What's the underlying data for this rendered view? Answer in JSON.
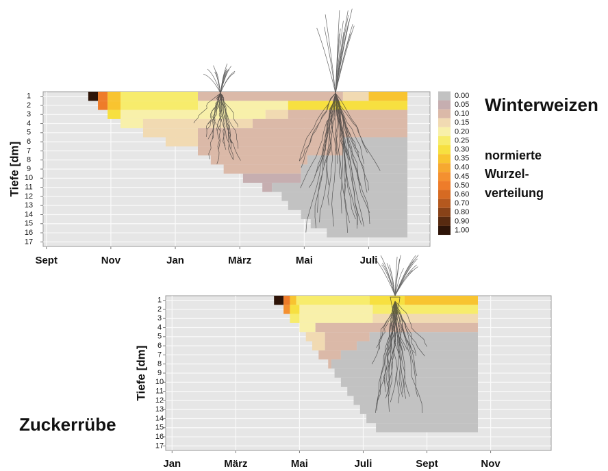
{
  "chart_data": [
    {
      "type": "heatmap",
      "title": "Winterweizen",
      "y_label": "Tiefe [dm]",
      "xlim": [
        -0.1,
        11.9
      ],
      "xticks": [
        {
          "value": 0,
          "label": "Sept"
        },
        {
          "value": 2,
          "label": "Nov"
        },
        {
          "value": 4,
          "label": "Jan"
        },
        {
          "value": 6,
          "label": "März"
        },
        {
          "value": 8,
          "label": "Mai"
        },
        {
          "value": 10,
          "label": "Juli"
        }
      ],
      "ylim": [
        0.5,
        17.5
      ],
      "y_inverted": true,
      "yticks": [
        1,
        2,
        3,
        4,
        5,
        6,
        7,
        8,
        9,
        10,
        11,
        12,
        13,
        14,
        15,
        16,
        17
      ],
      "grid": true,
      "colorbar": {
        "title": [
          "normierte",
          "Wurzel-",
          "verteilung"
        ],
        "ticks": [
          {
            "value": 0,
            "label": "0.00",
            "color": "#c2c2c2"
          },
          {
            "value": 0.05,
            "label": "0.05",
            "color": "#c6aeb0"
          },
          {
            "value": 0.1,
            "label": "0.10",
            "color": "#dbb9a8"
          },
          {
            "value": 0.15,
            "label": "0.15",
            "color": "#f1dab2"
          },
          {
            "value": 0.2,
            "label": "0.20",
            "color": "#f8f0aa"
          },
          {
            "value": 0.25,
            "label": "0.25",
            "color": "#f7ec6c"
          },
          {
            "value": 0.3,
            "label": "0.30",
            "color": "#f7e040"
          },
          {
            "value": 0.35,
            "label": "0.35",
            "color": "#f8c430"
          },
          {
            "value": 0.4,
            "label": "0.40",
            "color": "#f6a830"
          },
          {
            "value": 0.45,
            "label": "0.45",
            "color": "#f49030"
          },
          {
            "value": 0.5,
            "label": "0.50",
            "color": "#ee7c2a"
          },
          {
            "value": 0.6,
            "label": "0.60",
            "color": "#d66a22"
          },
          {
            "value": 0.7,
            "label": "0.70",
            "color": "#b4581e"
          },
          {
            "value": 0.8,
            "label": "0.80",
            "color": "#884218"
          },
          {
            "value": 0.9,
            "label": "0.90",
            "color": "#582a10"
          },
          {
            "value": 1,
            "label": "1.00",
            "color": "#2e1408"
          }
        ]
      },
      "rows": [
        [
          {
            "start": 1.3,
            "end": 1.6,
            "value": 1
          },
          {
            "start": 1.6,
            "end": 1.9,
            "value": 0.5
          },
          {
            "start": 1.9,
            "end": 2.3,
            "value": 0.35
          },
          {
            "start": 2.3,
            "end": 4.7,
            "value": 0.25
          },
          {
            "start": 4.7,
            "end": 9.2,
            "value": 0.1
          },
          {
            "start": 9.2,
            "end": 10,
            "value": 0.15
          },
          {
            "start": 10,
            "end": 11.2,
            "value": 0.35
          }
        ],
        [
          {
            "start": 1.6,
            "end": 1.9,
            "value": 0.5
          },
          {
            "start": 1.9,
            "end": 2.3,
            "value": 0.35
          },
          {
            "start": 2.3,
            "end": 4.7,
            "value": 0.25
          },
          {
            "start": 4.7,
            "end": 7.5,
            "value": 0.2
          },
          {
            "start": 7.5,
            "end": 11.2,
            "value": 0.3
          }
        ],
        [
          {
            "start": 1.9,
            "end": 2.3,
            "value": 0.3
          },
          {
            "start": 2.3,
            "end": 6.8,
            "value": 0.2
          },
          {
            "start": 6.8,
            "end": 7.5,
            "value": 0.15
          },
          {
            "start": 7.5,
            "end": 11.2,
            "value": 0.1
          }
        ],
        [
          {
            "start": 2.3,
            "end": 3,
            "value": 0.2
          },
          {
            "start": 3,
            "end": 6.4,
            "value": 0.15
          },
          {
            "start": 6.4,
            "end": 11.2,
            "value": 0.1
          }
        ],
        [
          {
            "start": 3,
            "end": 4.7,
            "value": 0.15
          },
          {
            "start": 4.7,
            "end": 11.2,
            "value": 0.1
          }
        ],
        [
          {
            "start": 3.7,
            "end": 4.7,
            "value": 0.15
          },
          {
            "start": 4.7,
            "end": 9.2,
            "value": 0.1
          },
          {
            "start": 9.2,
            "end": 11.2,
            "value": 0
          }
        ],
        [
          {
            "start": 4.7,
            "end": 9.2,
            "value": 0.1
          },
          {
            "start": 9.2,
            "end": 11.2,
            "value": 0
          }
        ],
        [
          {
            "start": 5.1,
            "end": 8.1,
            "value": 0.1
          },
          {
            "start": 8.1,
            "end": 11.2,
            "value": 0
          }
        ],
        [
          {
            "start": 5.5,
            "end": 7.9,
            "value": 0.1
          },
          {
            "start": 7.9,
            "end": 11.2,
            "value": 0
          }
        ],
        [
          {
            "start": 6.1,
            "end": 7.9,
            "value": 0.05
          },
          {
            "start": 7.9,
            "end": 11.2,
            "value": 0
          }
        ],
        [
          {
            "start": 6.7,
            "end": 7,
            "value": 0.05
          },
          {
            "start": 7,
            "end": 11.2,
            "value": 0
          }
        ],
        [
          {
            "start": 7.3,
            "end": 11.2,
            "value": 0
          }
        ],
        [
          {
            "start": 7.5,
            "end": 11.2,
            "value": 0
          }
        ],
        [
          {
            "start": 7.9,
            "end": 11.2,
            "value": 0
          }
        ],
        [
          {
            "start": 8.2,
            "end": 11.2,
            "value": 0
          }
        ],
        [
          {
            "start": 8.7,
            "end": 11.2,
            "value": 0
          }
        ],
        []
      ]
    },
    {
      "type": "heatmap",
      "title": "Zuckerrübe",
      "y_label": "Tiefe [dm]",
      "xlim": [
        -0.2,
        11.9
      ],
      "xticks": [
        {
          "value": 0,
          "label": "Jan"
        },
        {
          "value": 2,
          "label": "März"
        },
        {
          "value": 4,
          "label": "Mai"
        },
        {
          "value": 6,
          "label": "Juli"
        },
        {
          "value": 8,
          "label": "Sept"
        },
        {
          "value": 10,
          "label": "Nov"
        }
      ],
      "ylim": [
        0.5,
        17.5
      ],
      "y_inverted": true,
      "yticks": [
        1,
        2,
        3,
        4,
        5,
        6,
        7,
        8,
        9,
        10,
        11,
        12,
        13,
        14,
        15,
        16,
        17
      ],
      "grid": true,
      "rows": [
        [
          {
            "start": 3.2,
            "end": 3.5,
            "value": 1
          },
          {
            "start": 3.5,
            "end": 3.7,
            "value": 0.5
          },
          {
            "start": 3.7,
            "end": 3.9,
            "value": 0.35
          },
          {
            "start": 3.9,
            "end": 6.2,
            "value": 0.25
          },
          {
            "start": 6.2,
            "end": 7.3,
            "value": 0.3
          },
          {
            "start": 7.3,
            "end": 9.6,
            "value": 0.35
          }
        ],
        [
          {
            "start": 3.5,
            "end": 3.7,
            "value": 0.45
          },
          {
            "start": 3.7,
            "end": 4,
            "value": 0.3
          },
          {
            "start": 4,
            "end": 6.3,
            "value": 0.2
          },
          {
            "start": 6.3,
            "end": 9.6,
            "value": 0.25
          }
        ],
        [
          {
            "start": 3.7,
            "end": 4,
            "value": 0.25
          },
          {
            "start": 4,
            "end": 6.3,
            "value": 0.2
          },
          {
            "start": 6.3,
            "end": 9.6,
            "value": 0.15
          }
        ],
        [
          {
            "start": 4,
            "end": 4.5,
            "value": 0.2
          },
          {
            "start": 4.5,
            "end": 9.6,
            "value": 0.1
          }
        ],
        [
          {
            "start": 4.2,
            "end": 4.8,
            "value": 0.15
          },
          {
            "start": 4.8,
            "end": 6.2,
            "value": 0.1
          },
          {
            "start": 6.2,
            "end": 9.6,
            "value": 0
          }
        ],
        [
          {
            "start": 4.4,
            "end": 4.8,
            "value": 0.15
          },
          {
            "start": 4.8,
            "end": 5.8,
            "value": 0.1
          },
          {
            "start": 5.8,
            "end": 9.6,
            "value": 0
          }
        ],
        [
          {
            "start": 4.6,
            "end": 5.3,
            "value": 0.1
          },
          {
            "start": 5.3,
            "end": 9.6,
            "value": 0
          }
        ],
        [
          {
            "start": 4.9,
            "end": 5,
            "value": 0.1
          },
          {
            "start": 5,
            "end": 9.6,
            "value": 0
          }
        ],
        [
          {
            "start": 5.1,
            "end": 9.6,
            "value": 0
          }
        ],
        [
          {
            "start": 5.3,
            "end": 9.6,
            "value": 0
          }
        ],
        [
          {
            "start": 5.5,
            "end": 9.6,
            "value": 0
          }
        ],
        [
          {
            "start": 5.7,
            "end": 9.6,
            "value": 0
          }
        ],
        [
          {
            "start": 5.9,
            "end": 9.6,
            "value": 0
          }
        ],
        [
          {
            "start": 6.1,
            "end": 9.6,
            "value": 0
          }
        ],
        [
          {
            "start": 6.4,
            "end": 9.6,
            "value": 0
          }
        ],
        [],
        []
      ]
    }
  ]
}
